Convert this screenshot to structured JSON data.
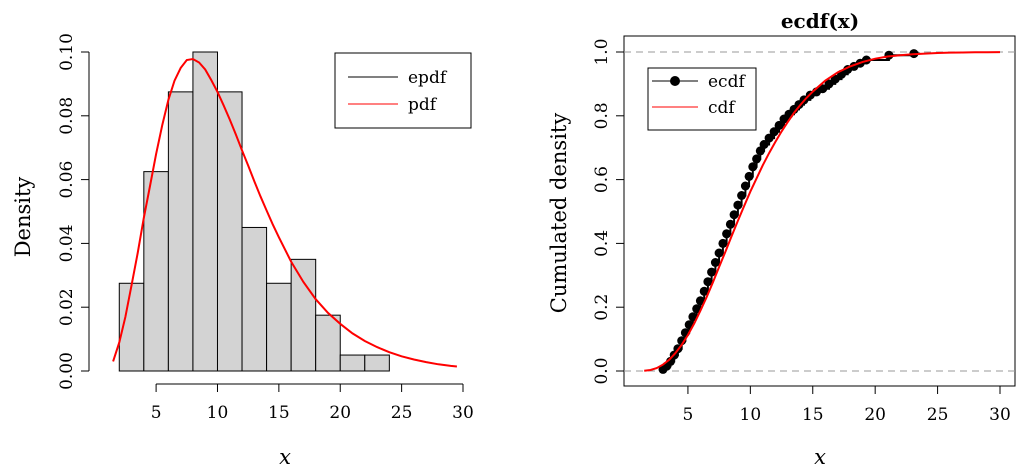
{
  "chart_data": [
    {
      "type": "bar",
      "subtype": "histogram",
      "title": "",
      "xlabel": "x",
      "ylabel": "Density",
      "xlim": [
        1,
        30
      ],
      "ylim": [
        0,
        0.1
      ],
      "x_ticks": [
        5,
        10,
        15,
        20,
        25,
        30
      ],
      "y_ticks": [
        "0.00",
        "0.02",
        "0.04",
        "0.06",
        "0.08",
        "0.10"
      ],
      "bins": [
        {
          "from": 2,
          "to": 4,
          "density": 0.0275
        },
        {
          "from": 4,
          "to": 6,
          "density": 0.0625
        },
        {
          "from": 6,
          "to": 8,
          "density": 0.0875
        },
        {
          "from": 8,
          "to": 10,
          "density": 0.1
        },
        {
          "from": 10,
          "to": 12,
          "density": 0.0875
        },
        {
          "from": 12,
          "to": 14,
          "density": 0.045
        },
        {
          "from": 14,
          "to": 16,
          "density": 0.0275
        },
        {
          "from": 16,
          "to": 18,
          "density": 0.035
        },
        {
          "from": 18,
          "to": 20,
          "density": 0.0175
        },
        {
          "from": 20,
          "to": 22,
          "density": 0.005
        },
        {
          "from": 22,
          "to": 24,
          "density": 0.005
        }
      ],
      "pdf_curve": {
        "name": "pdf",
        "color": "#ff0000",
        "x": [
          1.5,
          2,
          2.5,
          3,
          3.5,
          4,
          4.5,
          5,
          5.5,
          6,
          6.5,
          7,
          7.5,
          8,
          8.5,
          9,
          9.5,
          10,
          10.5,
          11,
          11.5,
          12,
          12.5,
          13,
          13.5,
          14,
          14.5,
          15,
          16,
          17,
          18,
          19,
          20,
          21,
          22,
          23,
          24,
          25,
          26,
          27,
          28,
          29,
          29.5
        ],
        "y": [
          0.003,
          0.009,
          0.017,
          0.027,
          0.037,
          0.048,
          0.058,
          0.068,
          0.077,
          0.085,
          0.091,
          0.095,
          0.0975,
          0.0978,
          0.0967,
          0.0945,
          0.0912,
          0.0875,
          0.0833,
          0.0788,
          0.0741,
          0.0692,
          0.0644,
          0.0595,
          0.0548,
          0.0503,
          0.046,
          0.0419,
          0.0343,
          0.0279,
          0.0225,
          0.0182,
          0.0148,
          0.0118,
          0.0094,
          0.0075,
          0.0059,
          0.0046,
          0.0036,
          0.0028,
          0.0021,
          0.0016,
          0.0014
        ]
      },
      "legend": {
        "position": "top-right",
        "entries": [
          {
            "label": "epdf",
            "color": "#000000"
          },
          {
            "label": "pdf",
            "color": "#ff0000"
          }
        ]
      },
      "histogram_fill": "#d3d3d3"
    },
    {
      "type": "line",
      "subtype": "ecdf",
      "title": "ecdf(x)",
      "xlabel": "x",
      "ylabel": "Cumulated density",
      "xlim": [
        1,
        30
      ],
      "ylim": [
        0,
        1
      ],
      "x_ticks": [
        5,
        10,
        15,
        20,
        25,
        30
      ],
      "y_ticks": [
        "0.0",
        "0.2",
        "0.4",
        "0.6",
        "0.8",
        "1.0"
      ],
      "reference_lines_y": [
        0,
        1
      ],
      "ecdf_points": {
        "name": "ecdf",
        "color": "#000000",
        "x": [
          3.0,
          3.3,
          3.6,
          3.9,
          4.2,
          4.5,
          4.8,
          5.1,
          5.4,
          5.7,
          6.0,
          6.3,
          6.6,
          6.9,
          7.2,
          7.5,
          7.8,
          8.1,
          8.4,
          8.7,
          9.0,
          9.3,
          9.6,
          9.9,
          10.2,
          10.5,
          10.8,
          11.1,
          11.5,
          11.9,
          12.3,
          12.7,
          13.1,
          13.5,
          13.9,
          14.3,
          14.8,
          15.3,
          15.8,
          16.3,
          16.8,
          17.3,
          17.8,
          18.3,
          18.8,
          19.3,
          21.1,
          23.1
        ],
        "y": [
          0.005,
          0.015,
          0.03,
          0.05,
          0.07,
          0.095,
          0.12,
          0.145,
          0.17,
          0.195,
          0.22,
          0.25,
          0.28,
          0.31,
          0.34,
          0.37,
          0.4,
          0.43,
          0.46,
          0.49,
          0.52,
          0.55,
          0.58,
          0.61,
          0.64,
          0.665,
          0.69,
          0.71,
          0.73,
          0.75,
          0.77,
          0.79,
          0.805,
          0.82,
          0.835,
          0.85,
          0.865,
          0.875,
          0.885,
          0.9,
          0.915,
          0.93,
          0.945,
          0.955,
          0.965,
          0.975,
          0.99,
          0.995
        ]
      },
      "cdf_curve": {
        "name": "cdf",
        "color": "#ff0000",
        "x": [
          1.5,
          2,
          2.5,
          3,
          3.5,
          4,
          4.5,
          5,
          5.5,
          6,
          6.5,
          7,
          7.5,
          8,
          8.5,
          9,
          9.5,
          10,
          10.5,
          11,
          11.5,
          12,
          12.5,
          13,
          13.5,
          14,
          14.5,
          15,
          16,
          17,
          18,
          19,
          20,
          21,
          22,
          23,
          24,
          25,
          26,
          27,
          28,
          29,
          30
        ],
        "y": [
          0.0005,
          0.003,
          0.009,
          0.02,
          0.035,
          0.056,
          0.082,
          0.113,
          0.149,
          0.189,
          0.232,
          0.278,
          0.326,
          0.374,
          0.423,
          0.471,
          0.517,
          0.562,
          0.604,
          0.645,
          0.683,
          0.718,
          0.751,
          0.781,
          0.809,
          0.834,
          0.856,
          0.876,
          0.91,
          0.936,
          0.955,
          0.969,
          0.979,
          0.986,
          0.99,
          0.993,
          0.995,
          0.997,
          0.998,
          0.9985,
          0.999,
          0.9995,
          0.9997
        ]
      },
      "legend": {
        "position": "top-left",
        "entries": [
          {
            "label": "ecdf",
            "color": "#000000"
          },
          {
            "label": "cdf",
            "color": "#ff0000"
          }
        ]
      }
    }
  ]
}
